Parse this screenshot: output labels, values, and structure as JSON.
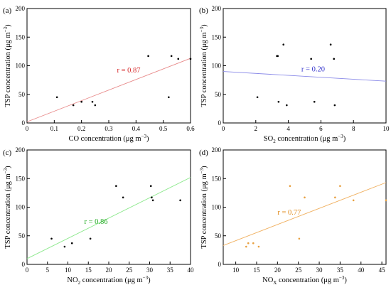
{
  "figure": {
    "panels": [
      {
        "panel_label": "(a)"
      },
      {
        "panel_label": "(b)"
      },
      {
        "panel_label": "(c)"
      },
      {
        "panel_label": "(d)"
      }
    ]
  },
  "chart_data": [
    {
      "type": "scatter",
      "panel_label": "(a)",
      "xlabel_parts": [
        {
          "t": "CO concentration (μg m"
        },
        {
          "t": "−3",
          "sup": true
        },
        {
          "t": ")"
        }
      ],
      "ylabel_parts": [
        {
          "t": "TSP concentration (μg m"
        },
        {
          "t": "−3",
          "sup": true
        },
        {
          "t": ")"
        }
      ],
      "xlim": [
        0,
        0.6
      ],
      "ylim": [
        0,
        200
      ],
      "xticks": [
        0,
        0.1,
        0.2,
        0.3,
        0.4,
        0.5,
        0.6
      ],
      "xtick_labels": [
        "0",
        "0.1",
        "0.2",
        "0.3",
        "0.4",
        "0.5",
        "0.6"
      ],
      "yticks": [
        0,
        50,
        100,
        150,
        200
      ],
      "ytick_labels": [
        "0",
        "50",
        "100",
        "150",
        "200"
      ],
      "points": {
        "x": [
          0.11,
          0.17,
          0.2,
          0.24,
          0.25,
          0.445,
          0.52,
          0.53,
          0.555,
          0.6
        ],
        "y": [
          45,
          31,
          37,
          37,
          31,
          117,
          45,
          117,
          112,
          112
        ]
      },
      "point_color": "#000000",
      "fit": {
        "x": [
          0,
          0.6
        ],
        "y": [
          2,
          113
        ]
      },
      "fit_color": "#e88a8a",
      "r_label": "r = 0.87",
      "r_color": "#d62728",
      "r_pos": {
        "x": 0.33,
        "y": 88
      },
      "grid": false
    },
    {
      "type": "scatter",
      "panel_label": "(b)",
      "xlabel_parts": [
        {
          "t": "SO"
        },
        {
          "t": "2",
          "sub": true
        },
        {
          "t": " concentration (μg m"
        },
        {
          "t": "−3",
          "sup": true
        },
        {
          "t": ")"
        }
      ],
      "ylabel_parts": [
        {
          "t": "TSP concentration (μg m"
        },
        {
          "t": "−3",
          "sup": true
        },
        {
          "t": ")"
        }
      ],
      "xlim": [
        0,
        10
      ],
      "ylim": [
        0,
        200
      ],
      "xticks": [
        0,
        2,
        4,
        6,
        8,
        10
      ],
      "xtick_labels": [
        "0",
        "2",
        "4",
        "6",
        "8",
        "10"
      ],
      "yticks": [
        0,
        50,
        100,
        150,
        200
      ],
      "ytick_labels": [
        "0",
        "50",
        "100",
        "150",
        "200"
      ],
      "points": {
        "x": [
          2.1,
          3.3,
          3.35,
          3.4,
          3.7,
          3.9,
          5.4,
          5.6,
          6.6,
          6.8,
          6.85
        ],
        "y": [
          45,
          117,
          117,
          37,
          137,
          31,
          112,
          37,
          137,
          112,
          31
        ]
      },
      "point_color": "#000000",
      "fit": {
        "x": [
          0,
          10
        ],
        "y": [
          90,
          73
        ]
      },
      "fit_color": "#8a8ae8",
      "r_label": "r = 0.20",
      "r_color": "#3333cc",
      "r_pos": {
        "x": 4.8,
        "y": 90
      },
      "grid": false
    },
    {
      "type": "scatter",
      "panel_label": "(c)",
      "xlabel_parts": [
        {
          "t": "NO"
        },
        {
          "t": "2",
          "sub": true
        },
        {
          "t": " concentration (μg m"
        },
        {
          "t": "−3",
          "sup": true
        },
        {
          "t": ")"
        }
      ],
      "ylabel_parts": [
        {
          "t": "TSP concentration (μg m"
        },
        {
          "t": "−3",
          "sup": true
        },
        {
          "t": ")"
        }
      ],
      "xlim": [
        0,
        40
      ],
      "ylim": [
        0,
        200
      ],
      "xticks": [
        0,
        5,
        10,
        15,
        20,
        25,
        30,
        35,
        40
      ],
      "xtick_labels": [
        "0",
        "5",
        "10",
        "15",
        "20",
        "25",
        "30",
        "35",
        "40"
      ],
      "yticks": [
        0,
        50,
        100,
        150,
        200
      ],
      "ytick_labels": [
        "0",
        "50",
        "100",
        "150",
        "200"
      ],
      "points": {
        "x": [
          6,
          9.2,
          11,
          15.5,
          21.8,
          23.5,
          30.3,
          30.5,
          30.8,
          37.5
        ],
        "y": [
          45,
          31,
          37,
          45,
          137,
          117,
          137,
          117,
          112,
          112
        ]
      },
      "point_color": "#000000",
      "fit": {
        "x": [
          0,
          40
        ],
        "y": [
          10,
          152
        ]
      },
      "fit_color": "#8ae88a",
      "r_label": "r = 0.86",
      "r_color": "#22aa22",
      "r_pos": {
        "x": 14,
        "y": 71
      },
      "grid": false
    },
    {
      "type": "scatter",
      "panel_label": "(d)",
      "xlabel_parts": [
        {
          "t": "NO"
        },
        {
          "t": "X",
          "sub": true
        },
        {
          "t": " concentration (μg m"
        },
        {
          "t": "−3",
          "sup": true
        },
        {
          "t": ")"
        }
      ],
      "ylabel_parts": [
        {
          "t": "TSP concentration (μg m"
        },
        {
          "t": "−3",
          "sup": true
        },
        {
          "t": ")"
        }
      ],
      "xlim": [
        7,
        46
      ],
      "ylim": [
        0,
        200
      ],
      "xticks": [
        10,
        15,
        20,
        25,
        30,
        35,
        40,
        45
      ],
      "xtick_labels": [
        "10",
        "15",
        "20",
        "25",
        "30",
        "35",
        "40",
        "45"
      ],
      "yticks": [
        0,
        50,
        100,
        150,
        200
      ],
      "ytick_labels": [
        "0",
        "50",
        "100",
        "150",
        "200"
      ],
      "points": {
        "x": [
          12.5,
          13,
          14.2,
          15.5,
          23,
          25.2,
          26.5,
          33.8,
          35,
          38.2,
          46
        ],
        "y": [
          31,
          37,
          37,
          31,
          137,
          45,
          117,
          117,
          137,
          112,
          112
        ]
      },
      "point_color": "#e8a040",
      "fit": {
        "x": [
          7,
          46
        ],
        "y": [
          33,
          143
        ]
      },
      "fit_color": "#f0b060",
      "r_label": "r = 0.77",
      "r_color": "#e08a1a",
      "r_pos": {
        "x": 20,
        "y": 87
      },
      "grid": false
    }
  ]
}
